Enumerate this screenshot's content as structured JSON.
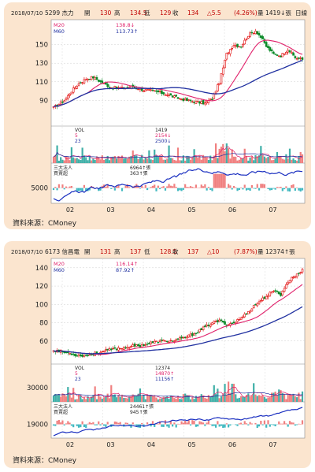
{
  "charts": [
    {
      "header": {
        "date": "2018/07/10",
        "code_name": "5299 杰力",
        "open_label": "開",
        "open": "130",
        "high_label": "高",
        "high": "134.5",
        "low_label": "低",
        "low": "129",
        "close_label": "收",
        "close": "134",
        "change": "△5.5",
        "pct": "(4.26%)",
        "vol_label": "量",
        "vol": "1419↓張",
        "tail": "日線"
      },
      "ma_legend": [
        {
          "label": "M20",
          "value": "138.8↓",
          "color": "#e0206a"
        },
        {
          "label": "M60",
          "value": "113.73↑",
          "color": "#2030a0"
        }
      ],
      "y_ticks": [
        "150",
        "130",
        "110",
        "90"
      ],
      "vol_legend": [
        {
          "label": "VOL",
          "value": "1419",
          "color": "#222"
        },
        {
          "label": "5",
          "value": "2154↓",
          "color": "#e0206a"
        },
        {
          "label": "23",
          "value": "2500↓",
          "color": "#2030a0"
        }
      ],
      "inst_legend": [
        {
          "label": "三大法人",
          "value": "6964↑張",
          "color": "#e0206a"
        },
        {
          "label": "買賣超",
          "value": "363↑張",
          "color": "#2030a0"
        }
      ],
      "inst_tick": "5000",
      "x_ticks": [
        "02",
        "03",
        "04",
        "05",
        "06",
        "07"
      ],
      "source": "資料來源：CMoney"
    },
    {
      "header": {
        "date": "2018/07/10",
        "code_name": "6173 信昌電",
        "open_label": "開",
        "open": "131",
        "high_label": "高",
        "high": "137",
        "low_label": "低",
        "low": "128.5",
        "close_label": "收",
        "close": "137",
        "change": "△10",
        "pct": "(7.87%)",
        "vol_label": "量",
        "vol": "12374↑張",
        "tail": ""
      },
      "ma_legend": [
        {
          "label": "M20",
          "value": "116.14↑",
          "color": "#e0206a"
        },
        {
          "label": "M60",
          "value": "87.92↑",
          "color": "#2030a0"
        }
      ],
      "y_ticks": [
        "140",
        "120",
        "100",
        "80",
        "60"
      ],
      "vol_legend": [
        {
          "label": "VOL",
          "value": "12374",
          "color": "#222"
        },
        {
          "label": "5",
          "value": "14870↑",
          "color": "#e0206a"
        },
        {
          "label": "23",
          "value": "11156↑",
          "color": "#2030a0"
        }
      ],
      "vol_tick": "30000",
      "inst_legend": [
        {
          "label": "三大法人",
          "value": "24461↑張",
          "color": "#e0206a"
        },
        {
          "label": "買賣超",
          "value": "945↑張",
          "color": "#2030a0"
        }
      ],
      "inst_tick": "19000",
      "x_ticks": [
        "02",
        "03",
        "04",
        "05",
        "06",
        "07"
      ],
      "source": "資料來源：CMoney"
    }
  ],
  "chart_data": [
    {
      "type": "candlestick",
      "title": "5299 杰力",
      "x_months": [
        "02",
        "03",
        "04",
        "05",
        "06",
        "07"
      ],
      "ylim": [
        70,
        170
      ],
      "close_anchors": [
        [
          0,
          82
        ],
        [
          6,
          90
        ],
        [
          10,
          100
        ],
        [
          14,
          108
        ],
        [
          18,
          113
        ],
        [
          22,
          115
        ],
        [
          26,
          110
        ],
        [
          32,
          104
        ],
        [
          38,
          103
        ],
        [
          44,
          105
        ],
        [
          50,
          101
        ],
        [
          56,
          100
        ],
        [
          62,
          97
        ],
        [
          68,
          93
        ],
        [
          74,
          90
        ],
        [
          80,
          88
        ],
        [
          84,
          87
        ],
        [
          88,
          92
        ],
        [
          92,
          110
        ],
        [
          96,
          140
        ],
        [
          100,
          150
        ],
        [
          104,
          148
        ],
        [
          108,
          160
        ],
        [
          112,
          165
        ],
        [
          115,
          158
        ],
        [
          118,
          148
        ],
        [
          122,
          140
        ],
        [
          126,
          138
        ],
        [
          130,
          145
        ],
        [
          134,
          136
        ],
        [
          138,
          134
        ]
      ],
      "ma_legend": {
        "M20": 138.8,
        "M60": 113.73
      },
      "last": {
        "open": 130,
        "high": 134.5,
        "low": 129,
        "close": 134,
        "volume": 1419
      },
      "volume_ma": {
        "5": 2154,
        "23": 2500
      },
      "institutional": {
        "三大法人": 6964,
        "買賣超": 363
      }
    },
    {
      "type": "candlestick",
      "title": "6173 信昌電",
      "x_months": [
        "02",
        "03",
        "04",
        "05",
        "06",
        "07"
      ],
      "ylim": [
        40,
        145
      ],
      "close_anchors": [
        [
          0,
          50
        ],
        [
          6,
          48
        ],
        [
          12,
          45
        ],
        [
          18,
          44
        ],
        [
          24,
          47
        ],
        [
          30,
          50
        ],
        [
          36,
          52
        ],
        [
          42,
          54
        ],
        [
          48,
          55
        ],
        [
          54,
          58
        ],
        [
          60,
          60
        ],
        [
          66,
          60
        ],
        [
          72,
          63
        ],
        [
          78,
          68
        ],
        [
          84,
          75
        ],
        [
          88,
          80
        ],
        [
          92,
          82
        ],
        [
          96,
          78
        ],
        [
          100,
          80
        ],
        [
          104,
          85
        ],
        [
          108,
          92
        ],
        [
          112,
          100
        ],
        [
          116,
          106
        ],
        [
          120,
          112
        ],
        [
          124,
          115
        ],
        [
          126,
          110
        ],
        [
          130,
          125
        ],
        [
          134,
          132
        ],
        [
          138,
          137
        ]
      ],
      "ma_legend": {
        "M20": 116.14,
        "M60": 87.92
      },
      "last": {
        "open": 131,
        "high": 137,
        "low": 128.5,
        "close": 137,
        "volume": 12374
      },
      "volume_ma": {
        "5": 14870,
        "23": 11156
      },
      "institutional": {
        "三大法人": 24461,
        "買賣超": 945
      }
    }
  ]
}
